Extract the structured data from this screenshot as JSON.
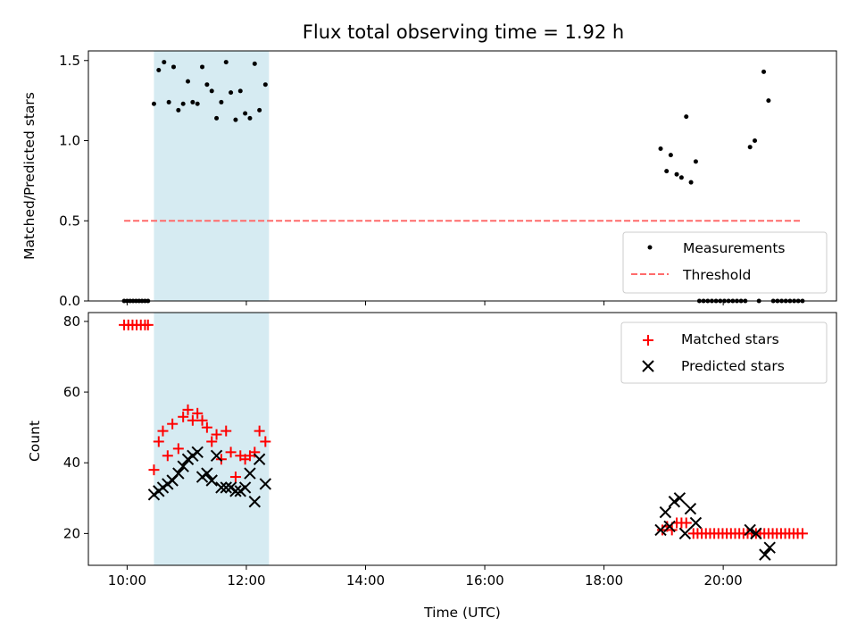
{
  "figure": {
    "title": "Flux total observing time = 1.92 h",
    "xlabel": "Time (UTC)"
  },
  "chart_data": [
    {
      "type": "scatter",
      "panel": "top",
      "title": "Flux total observing time = 1.92 h",
      "xlabel": "",
      "ylabel": "Matched/Predicted stars",
      "x_unit": "hours UTC",
      "xlim": [
        9.35,
        21.9
      ],
      "ylim": [
        0.0,
        1.56
      ],
      "xticks": [
        "10:00",
        "12:00",
        "14:00",
        "16:00",
        "18:00",
        "20:00"
      ],
      "yticks": [
        "0.0",
        "0.5",
        "1.0",
        "1.5"
      ],
      "shaded_interval": {
        "x": [
          10.45,
          12.38
        ],
        "color": "#add8e6"
      },
      "legend": {
        "placement": "lower right",
        "entries": [
          "Measurements",
          "Threshold"
        ]
      },
      "series": [
        {
          "name": "Measurements",
          "marker": "dot",
          "color": "#000000",
          "points": [
            [
              9.95,
              0
            ],
            [
              10.0,
              0
            ],
            [
              10.05,
              0
            ],
            [
              10.1,
              0
            ],
            [
              10.15,
              0
            ],
            [
              10.2,
              0
            ],
            [
              10.25,
              0
            ],
            [
              10.3,
              0
            ],
            [
              10.35,
              0
            ],
            [
              10.45,
              1.23
            ],
            [
              10.53,
              1.44
            ],
            [
              10.62,
              1.49
            ],
            [
              10.7,
              1.24
            ],
            [
              10.78,
              1.46
            ],
            [
              10.86,
              1.19
            ],
            [
              10.94,
              1.23
            ],
            [
              11.02,
              1.37
            ],
            [
              11.1,
              1.24
            ],
            [
              11.18,
              1.23
            ],
            [
              11.26,
              1.46
            ],
            [
              11.34,
              1.35
            ],
            [
              11.42,
              1.31
            ],
            [
              11.5,
              1.14
            ],
            [
              11.58,
              1.24
            ],
            [
              11.66,
              1.49
            ],
            [
              11.74,
              1.3
            ],
            [
              11.82,
              1.13
            ],
            [
              11.9,
              1.31
            ],
            [
              11.98,
              1.17
            ],
            [
              12.06,
              1.14
            ],
            [
              12.14,
              1.48
            ],
            [
              12.22,
              1.19
            ],
            [
              12.32,
              1.35
            ],
            [
              18.95,
              0.95
            ],
            [
              19.05,
              0.81
            ],
            [
              19.12,
              0.91
            ],
            [
              19.22,
              0.79
            ],
            [
              19.3,
              0.77
            ],
            [
              19.38,
              1.15
            ],
            [
              19.46,
              0.74
            ],
            [
              19.54,
              0.87
            ],
            [
              19.6,
              0
            ],
            [
              19.67,
              0
            ],
            [
              19.74,
              0
            ],
            [
              19.81,
              0
            ],
            [
              19.88,
              0
            ],
            [
              19.95,
              0
            ],
            [
              20.02,
              0
            ],
            [
              20.09,
              0
            ],
            [
              20.16,
              0
            ],
            [
              20.23,
              0
            ],
            [
              20.3,
              0
            ],
            [
              20.37,
              0
            ],
            [
              20.45,
              0.96
            ],
            [
              20.53,
              1.0
            ],
            [
              20.6,
              0
            ],
            [
              20.68,
              1.43
            ],
            [
              20.76,
              1.25
            ],
            [
              20.84,
              0
            ],
            [
              20.91,
              0
            ],
            [
              20.98,
              0
            ],
            [
              21.05,
              0
            ],
            [
              21.12,
              0
            ],
            [
              21.19,
              0
            ],
            [
              21.26,
              0
            ],
            [
              21.33,
              0
            ]
          ]
        },
        {
          "name": "Threshold",
          "line_style": "dashed",
          "color": "#ff6b6b",
          "x": [
            9.95,
            21.33
          ],
          "values": [
            0.5,
            0.5
          ]
        }
      ]
    },
    {
      "type": "scatter",
      "panel": "bottom",
      "xlabel": "Time (UTC)",
      "ylabel": "Count",
      "x_unit": "hours UTC",
      "xlim": [
        9.35,
        21.9
      ],
      "ylim": [
        11,
        82.5
      ],
      "xticks": [
        "10:00",
        "12:00",
        "14:00",
        "16:00",
        "18:00",
        "20:00"
      ],
      "yticks": [
        "20",
        "40",
        "60",
        "80"
      ],
      "shaded_interval": {
        "x": [
          10.45,
          12.38
        ],
        "color": "#add8e6"
      },
      "legend": {
        "placement": "upper right",
        "entries": [
          "Matched stars",
          "Predicted stars"
        ]
      },
      "series": [
        {
          "name": "Matched stars",
          "marker": "plus",
          "color": "#ff0000",
          "points": [
            [
              9.95,
              79
            ],
            [
              10.02,
              79
            ],
            [
              10.09,
              79
            ],
            [
              10.16,
              79
            ],
            [
              10.23,
              79
            ],
            [
              10.3,
              79
            ],
            [
              10.35,
              79
            ],
            [
              10.45,
              38
            ],
            [
              10.53,
              46
            ],
            [
              10.6,
              49
            ],
            [
              10.68,
              42
            ],
            [
              10.76,
              51
            ],
            [
              10.86,
              44
            ],
            [
              10.94,
              53
            ],
            [
              11.02,
              55
            ],
            [
              11.1,
              52
            ],
            [
              11.18,
              54
            ],
            [
              11.26,
              52
            ],
            [
              11.34,
              50
            ],
            [
              11.42,
              46
            ],
            [
              11.5,
              48
            ],
            [
              11.58,
              41
            ],
            [
              11.66,
              49
            ],
            [
              11.74,
              43
            ],
            [
              11.82,
              36
            ],
            [
              11.9,
              42
            ],
            [
              11.98,
              41
            ],
            [
              12.06,
              42
            ],
            [
              12.14,
              43
            ],
            [
              12.22,
              49
            ],
            [
              12.32,
              46
            ],
            [
              18.98,
              21
            ],
            [
              19.06,
              22
            ],
            [
              19.14,
              21
            ],
            [
              19.22,
              23
            ],
            [
              19.3,
              23
            ],
            [
              19.38,
              23
            ],
            [
              19.5,
              20
            ],
            [
              19.57,
              20
            ],
            [
              19.64,
              20
            ],
            [
              19.71,
              20
            ],
            [
              19.78,
              20
            ],
            [
              19.85,
              20
            ],
            [
              19.92,
              20
            ],
            [
              19.99,
              20
            ],
            [
              20.06,
              20
            ],
            [
              20.13,
              20
            ],
            [
              20.2,
              20
            ],
            [
              20.27,
              20
            ],
            [
              20.34,
              20
            ],
            [
              20.41,
              20
            ],
            [
              20.48,
              20
            ],
            [
              20.55,
              20
            ],
            [
              20.62,
              20
            ],
            [
              20.69,
              20
            ],
            [
              20.76,
              20
            ],
            [
              20.83,
              20
            ],
            [
              20.9,
              20
            ],
            [
              20.97,
              20
            ],
            [
              21.04,
              20
            ],
            [
              21.11,
              20
            ],
            [
              21.18,
              20
            ],
            [
              21.25,
              20
            ],
            [
              21.33,
              20
            ]
          ]
        },
        {
          "name": "Predicted stars",
          "marker": "x",
          "color": "#000000",
          "points": [
            [
              10.45,
              31
            ],
            [
              10.53,
              32
            ],
            [
              10.6,
              33
            ],
            [
              10.68,
              34
            ],
            [
              10.76,
              35
            ],
            [
              10.86,
              37
            ],
            [
              10.94,
              39
            ],
            [
              11.02,
              41
            ],
            [
              11.1,
              42
            ],
            [
              11.18,
              43
            ],
            [
              11.26,
              36
            ],
            [
              11.34,
              37
            ],
            [
              11.42,
              35
            ],
            [
              11.5,
              42
            ],
            [
              11.58,
              33
            ],
            [
              11.66,
              33
            ],
            [
              11.74,
              33
            ],
            [
              11.82,
              32
            ],
            [
              11.9,
              32
            ],
            [
              11.98,
              33
            ],
            [
              12.06,
              37
            ],
            [
              12.14,
              29
            ],
            [
              12.22,
              41
            ],
            [
              12.32,
              34
            ],
            [
              18.95,
              21
            ],
            [
              19.03,
              26
            ],
            [
              19.1,
              22
            ],
            [
              19.18,
              29
            ],
            [
              19.27,
              30
            ],
            [
              19.36,
              20
            ],
            [
              19.45,
              27
            ],
            [
              19.54,
              23
            ],
            [
              20.45,
              21
            ],
            [
              20.55,
              20
            ],
            [
              20.7,
              14
            ],
            [
              20.78,
              16
            ]
          ]
        }
      ]
    }
  ]
}
